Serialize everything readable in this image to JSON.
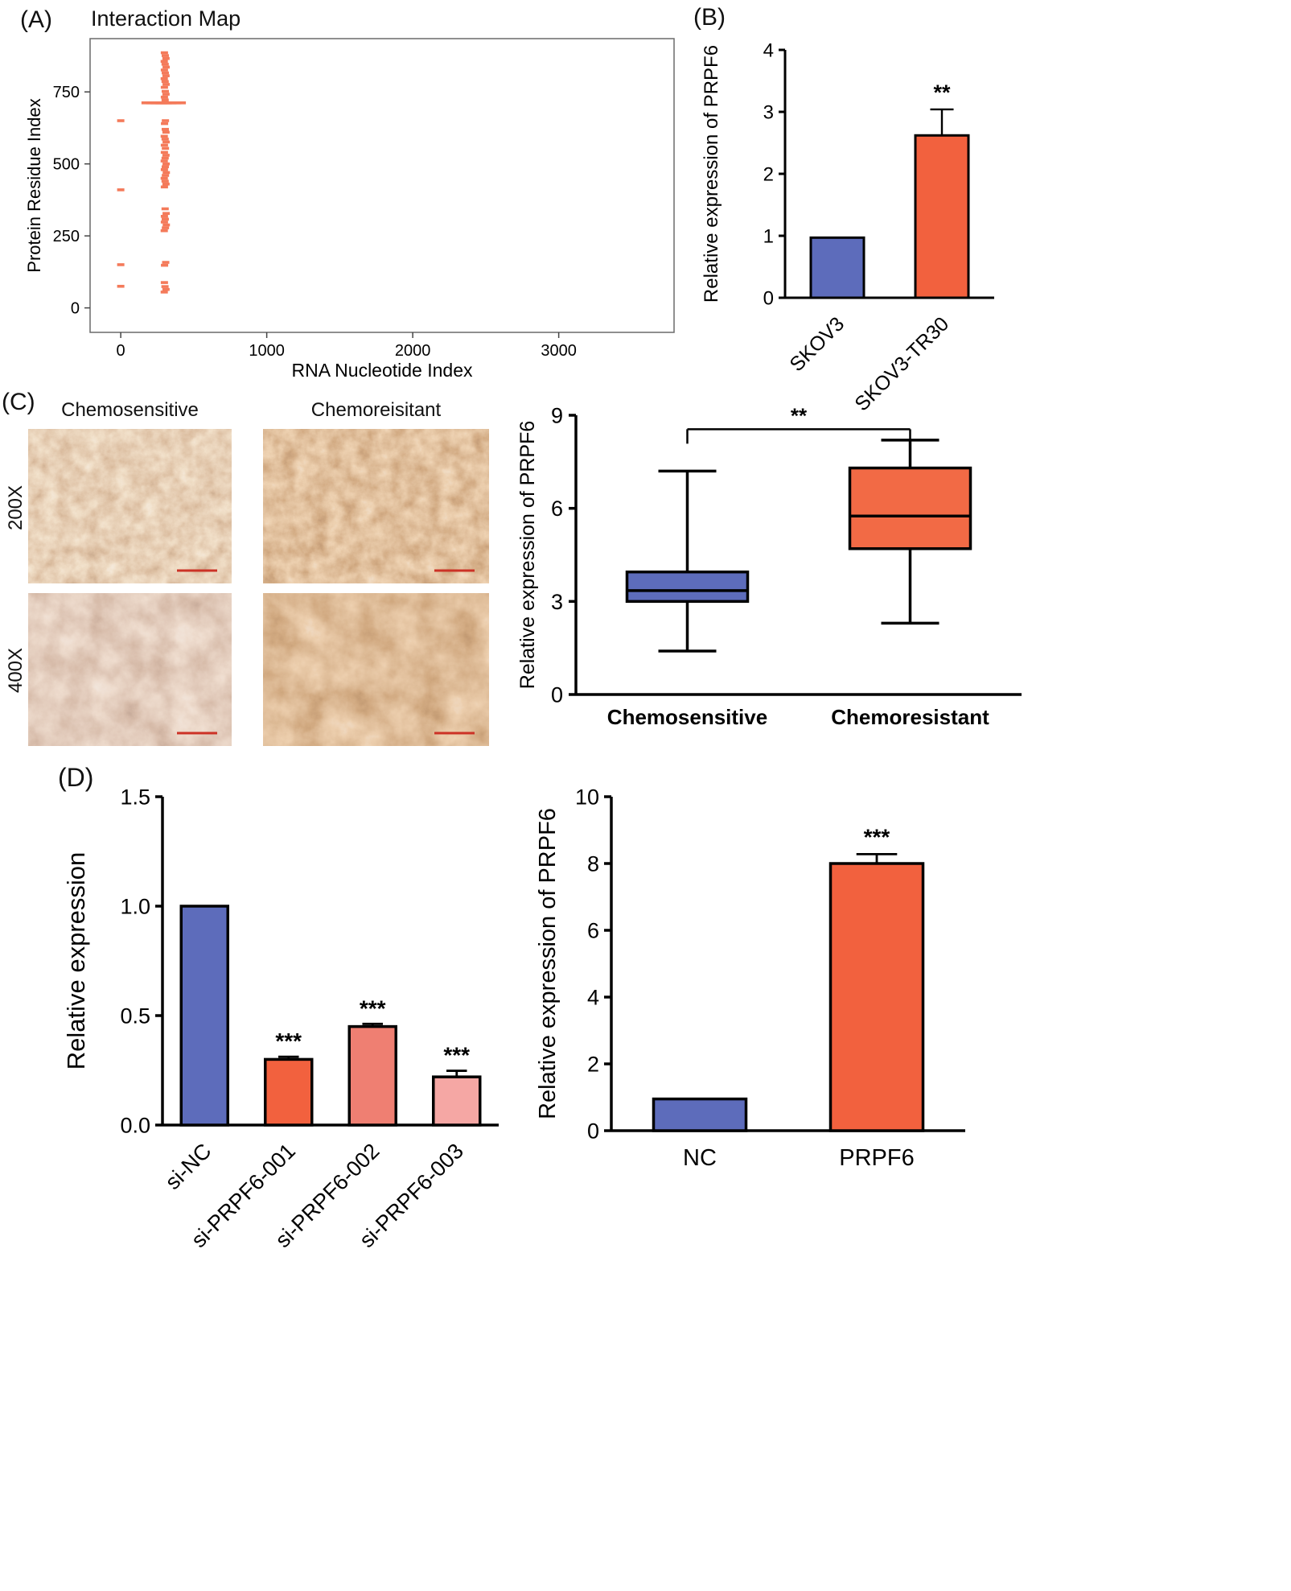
{
  "figure": {
    "panels": {
      "A": {
        "label": "(A)",
        "title": "Interaction Map"
      },
      "B": {
        "label": "(B)"
      },
      "C": {
        "label": "(C)",
        "col_headers": [
          "Chemosensitive",
          "Chemoreisitant"
        ],
        "row_labels": [
          "200X",
          "400X"
        ]
      },
      "D": {
        "label": "(D)"
      }
    }
  },
  "colors": {
    "blue": "#5d6cbb",
    "orange": "#f2613e",
    "salmon": "#ef7f72",
    "pink": "#f5a7a4",
    "scatter_coral": "#f47a5a",
    "scale_bar_red": "#cc3226"
  },
  "chart_data": [
    {
      "panel": "A",
      "type": "scatter",
      "title": "Interaction Map",
      "xlabel": "RNA Nucleotide Index",
      "ylabel": "Protein Residue Index",
      "xlim": [
        -210,
        3790
      ],
      "ylim": [
        -85,
        935
      ],
      "xticks": [
        0,
        1000,
        2000,
        3000
      ],
      "yticks": [
        0,
        250,
        500,
        750
      ],
      "marker": "dash",
      "color": "#f47a5a",
      "points": [
        [
          0,
          75
        ],
        [
          0,
          150
        ],
        [
          0,
          410
        ],
        [
          0,
          650
        ],
        [
          298,
          55
        ],
        [
          310,
          64
        ],
        [
          303,
          74
        ],
        [
          299,
          88
        ],
        [
          300,
          148
        ],
        [
          308,
          158
        ],
        [
          298,
          268
        ],
        [
          306,
          278
        ],
        [
          312,
          288
        ],
        [
          299,
          298
        ],
        [
          305,
          308
        ],
        [
          299,
          318
        ],
        [
          311,
          328
        ],
        [
          304,
          344
        ],
        [
          299,
          420
        ],
        [
          310,
          430
        ],
        [
          304,
          440
        ],
        [
          298,
          450
        ],
        [
          306,
          460
        ],
        [
          312,
          470
        ],
        [
          299,
          480
        ],
        [
          305,
          490
        ],
        [
          311,
          500
        ],
        [
          298,
          510
        ],
        [
          304,
          520
        ],
        [
          310,
          530
        ],
        [
          299,
          540
        ],
        [
          306,
          554
        ],
        [
          299,
          565
        ],
        [
          311,
          576
        ],
        [
          304,
          586
        ],
        [
          298,
          596
        ],
        [
          310,
          610
        ],
        [
          305,
          620
        ],
        [
          300,
          640
        ],
        [
          306,
          650
        ],
        [
          230,
          712,
          32
        ],
        [
          262,
          712,
          32
        ],
        [
          294,
          712,
          32
        ],
        [
          326,
          712,
          32
        ],
        [
          358,
          712,
          32
        ],
        [
          304,
          722
        ],
        [
          299,
          732
        ],
        [
          310,
          742
        ],
        [
          305,
          752
        ],
        [
          299,
          766
        ],
        [
          311,
          776
        ],
        [
          304,
          786
        ],
        [
          298,
          796
        ],
        [
          310,
          806
        ],
        [
          305,
          816
        ],
        [
          299,
          826
        ],
        [
          311,
          836
        ],
        [
          304,
          846
        ],
        [
          298,
          856
        ],
        [
          310,
          866
        ],
        [
          305,
          876
        ],
        [
          299,
          886
        ]
      ]
    },
    {
      "panel": "B",
      "type": "bar",
      "categories": [
        "SKOV3",
        "SKOV3-TR30"
      ],
      "values": [
        0.97,
        2.62
      ],
      "errors": [
        0,
        0.42
      ],
      "sig": [
        "",
        "**"
      ],
      "colors": [
        "#5d6cbb",
        "#f2613e"
      ],
      "ylabel": "Relative expression of PRPF6",
      "ylim": [
        0,
        4
      ],
      "yticks": [
        0,
        1,
        2,
        3,
        4
      ]
    },
    {
      "panel": "C",
      "type": "box",
      "categories": [
        "Chemosensitive",
        "Chemoresistant"
      ],
      "stats": [
        {
          "min": 1.4,
          "q1": 3.0,
          "med": 3.35,
          "q3": 3.95,
          "max": 7.2
        },
        {
          "min": 2.3,
          "q1": 4.7,
          "med": 5.75,
          "q3": 7.3,
          "max": 8.2
        }
      ],
      "colors": [
        "#5d6cbb",
        "#f26a45"
      ],
      "ylabel": "Relative expression of PRPF6",
      "ylim": [
        0,
        9
      ],
      "yticks": [
        0,
        3,
        6,
        9
      ],
      "bracket": {
        "y": 8.55,
        "label": "**"
      }
    },
    {
      "panel": "D1",
      "type": "bar",
      "categories": [
        "si-NC",
        "si-PRPF6-001",
        "si-PRPF6-002",
        "si-PRPF6-003"
      ],
      "values": [
        1.0,
        0.3,
        0.45,
        0.22
      ],
      "errors": [
        0,
        0.012,
        0.012,
        0.028
      ],
      "sig": [
        "",
        "***",
        "***",
        "***"
      ],
      "colors": [
        "#5d6cbb",
        "#f2613e",
        "#ef7f72",
        "#f5a7a4"
      ],
      "ylabel": "Relative expression",
      "ylim": [
        0,
        1.5
      ],
      "yticks": [
        0,
        0.5,
        1,
        1.5
      ],
      "ytick_labels": [
        "0.0",
        "0.5",
        "1.0",
        "1.5"
      ]
    },
    {
      "panel": "D2",
      "type": "bar",
      "categories": [
        "NC",
        "PRPF6"
      ],
      "values": [
        0.95,
        8.0
      ],
      "errors": [
        0,
        0.28
      ],
      "sig": [
        "",
        "***"
      ],
      "colors": [
        "#5d6cbb",
        "#f2613e"
      ],
      "ylabel": "Relative expression of PRPF6",
      "ylim": [
        0,
        10
      ],
      "yticks": [
        0,
        2,
        4,
        6,
        8,
        10
      ]
    }
  ]
}
